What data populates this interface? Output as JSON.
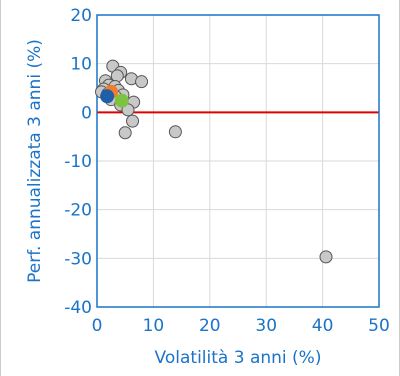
{
  "chart_data": {
    "type": "scatter",
    "xlabel": "Volatilità 3 anni (%)",
    "ylabel": "Perf. annualizzata 3 anni (%)",
    "xlim": [
      0,
      50
    ],
    "ylim": [
      -40,
      20
    ],
    "xticks": [
      0,
      10,
      20,
      30,
      40,
      50
    ],
    "yticks": [
      -40,
      -30,
      -20,
      -10,
      0,
      10,
      20
    ],
    "grid": true,
    "reference_line": {
      "y": 0,
      "color": "#e00000"
    },
    "colors": {
      "axis": "#1a73c8",
      "peer": "#c8c8c8",
      "grid": "#d9d9d9"
    },
    "peers": {
      "color": "#c8c8c8",
      "points": [
        {
          "x": 2.8,
          "y": 9.5
        },
        {
          "x": 4.2,
          "y": 8.2
        },
        {
          "x": 3.6,
          "y": 7.5
        },
        {
          "x": 6.1,
          "y": 6.9
        },
        {
          "x": 7.9,
          "y": 6.3
        },
        {
          "x": 1.5,
          "y": 6.5
        },
        {
          "x": 2.1,
          "y": 5.6
        },
        {
          "x": 3.2,
          "y": 5.3
        },
        {
          "x": 1.2,
          "y": 4.8
        },
        {
          "x": 3.8,
          "y": 4.5
        },
        {
          "x": 0.8,
          "y": 4.2
        },
        {
          "x": 1.9,
          "y": 3.8
        },
        {
          "x": 4.6,
          "y": 3.6
        },
        {
          "x": 3.3,
          "y": 3.2
        },
        {
          "x": 2.5,
          "y": 2.6
        },
        {
          "x": 6.5,
          "y": 2.1
        },
        {
          "x": 4.2,
          "y": 1.5
        },
        {
          "x": 5.5,
          "y": 0.5
        },
        {
          "x": 6.3,
          "y": -1.8
        },
        {
          "x": 5.0,
          "y": -4.2
        },
        {
          "x": 13.9,
          "y": -4.0
        },
        {
          "x": 40.6,
          "y": -29.7
        }
      ]
    },
    "highlights": [
      {
        "x": 2.5,
        "y": 4.2,
        "color": "#f07d2e"
      },
      {
        "x": 4.4,
        "y": 2.4,
        "color": "#7dc241"
      },
      {
        "x": 1.8,
        "y": 3.3,
        "color": "#1f5fa8"
      }
    ]
  }
}
